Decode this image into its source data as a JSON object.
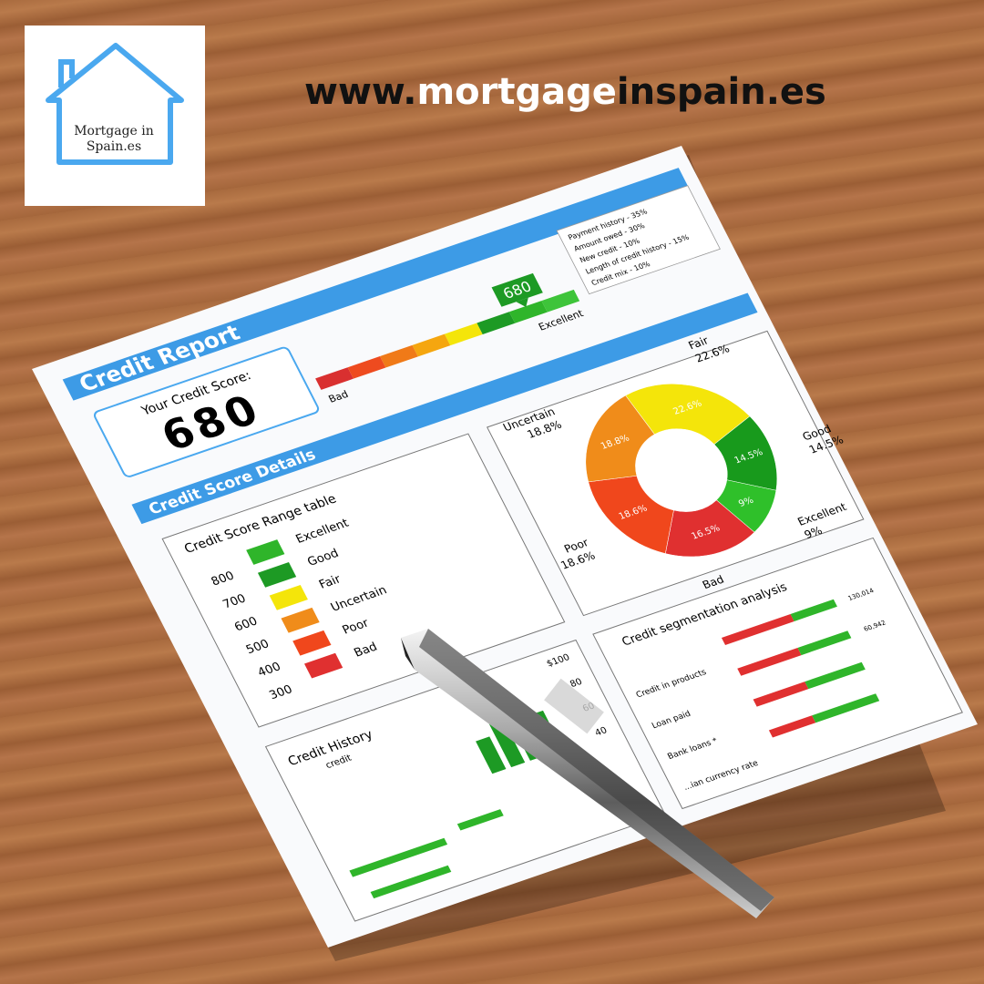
{
  "logo": {
    "lines": [
      "Mortgage in",
      "Spain.es"
    ]
  },
  "website": {
    "prefix": "www.",
    "highlight": "mortgage",
    "suffix": "inspain.es"
  },
  "report": {
    "title": "Credit Report",
    "score_label": "Your Credit Score:",
    "score": "680",
    "gauge": {
      "low_label": "Bad",
      "high_label": "Excellent",
      "colors": [
        "#d93030",
        "#ee4b1f",
        "#f07a18",
        "#f5a60f",
        "#f4e50a",
        "#1d9a24",
        "#2fb52a",
        "#3ec43a"
      ]
    },
    "factors": [
      "Payment history - 35%",
      "Amount owed - 30%",
      "New credit - 10%",
      "Length of credit history - 15%",
      "Credit mix - 10%"
    ],
    "details_title": "Credit Score Details",
    "range_table": {
      "title": "Credit Score Range table",
      "levels": [
        "Excellent",
        "Good",
        "Fair",
        "Uncertain",
        "Poor",
        "Bad"
      ],
      "scores": [
        "800",
        "700",
        "600",
        "500",
        "400",
        "300"
      ],
      "colors": [
        "#2fb52a",
        "#1d9a24",
        "#f4e50a",
        "#f08c1a",
        "#f0471c",
        "#e03030"
      ]
    },
    "donut": {
      "categories": [
        "Fair",
        "Good",
        "Excellent",
        "Bad",
        "Poor",
        "Uncertain"
      ],
      "values": [
        22.6,
        14.5,
        9,
        16.5,
        18.6,
        18.8
      ],
      "value_labels": [
        "22.6%",
        "14.5%",
        "9%",
        "16.5%",
        "18.6%",
        "18.8%"
      ],
      "colors": [
        "#f4e50a",
        "#189a1c",
        "#2fc02a",
        "#e03030",
        "#f0471c",
        "#f08c1a"
      ]
    },
    "history": {
      "title": "Credit History",
      "subtitle": "credit",
      "axis_labels": [
        "$100",
        "80",
        "60",
        "40"
      ]
    },
    "segmentation": {
      "title": "Credit segmentation analysis",
      "labels": [
        "Credit in products",
        "Loan paid",
        "Bank loans *",
        "...ian currency rate"
      ],
      "values": [
        "130,014",
        "60,942"
      ]
    }
  }
}
